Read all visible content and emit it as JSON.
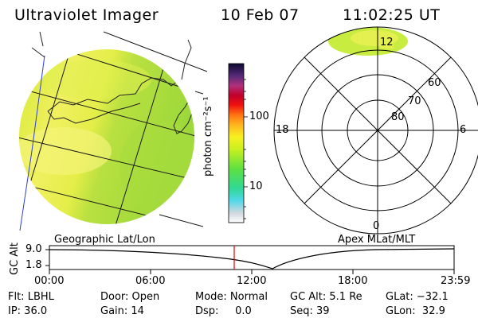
{
  "header": {
    "title": "Ultraviolet Imager",
    "date": "10 Feb 07",
    "time": "11:02:25 UT"
  },
  "colorbar": {
    "label": "photon cm⁻²s⁻¹",
    "tick_high": "100",
    "tick_low": "10"
  },
  "geo_panel": {
    "caption": "Geographic Lat/Lon"
  },
  "polar_panel": {
    "caption": "Apex MLat/MLT",
    "mlt_top": "12",
    "mlt_left": "18",
    "mlt_right": "6",
    "mlt_bottom": "0",
    "lat_60": "60",
    "lat_70": "70",
    "lat_80": "80"
  },
  "altitude_plot": {
    "ylabel": "GC Alt",
    "y_top": "9.0",
    "y_bottom": "1.8",
    "x_ticks": [
      "00:00",
      "06:00",
      "12:00",
      "18:00",
      "23:59"
    ],
    "marker_color": "#e00000"
  },
  "status": {
    "flt": "Flt: LBHL",
    "ip": "IP: 36.0",
    "door": "Door: Open",
    "gain": "Gain: 14",
    "mode": "Mode: Normal",
    "dsp": "Dsp:     0.0",
    "gc_alt": "GC Alt: 5.1 Re",
    "seq": "Seq: 39",
    "glat": "GLat: −32.1",
    "glon": "GLon:  32.9"
  }
}
